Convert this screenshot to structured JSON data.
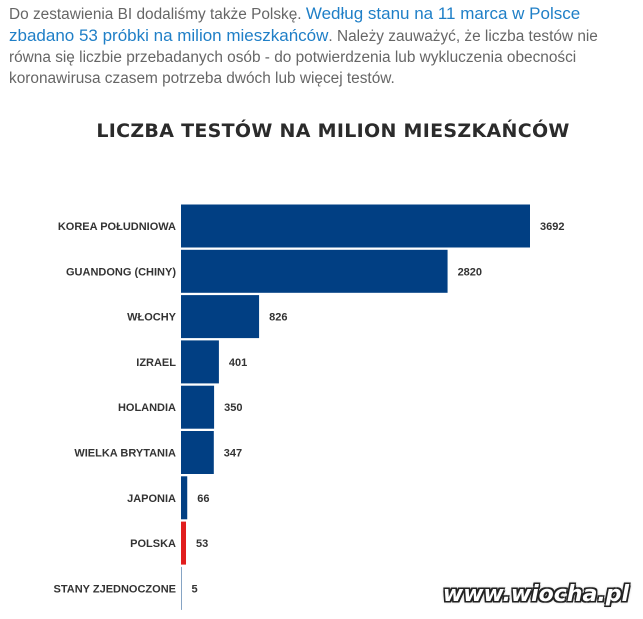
{
  "intro": {
    "text_before": "Do zestawienia BI dodaliśmy także Polskę. ",
    "link_text": "Według stanu na 11 marca w Polsce zbadano 53 próbki na milion mieszkańców",
    "text_after": ". Należy zauważyć, że liczba testów nie równa się liczbie przebadanych osób - do potwierdzenia lub wykluczenia obecności koronawirusa czasem potrzeba dwóch lub więcej testów."
  },
  "watermark": "www.wiocha.pl",
  "colors": {
    "bar": "#013f83",
    "highlight": "#e11d1d"
  },
  "chart_data": {
    "type": "bar",
    "orientation": "horizontal",
    "title": "LICZBA TESTÓW NA MILION MIESZKAŃCÓW",
    "categories": [
      "KOREA POŁUDNIOWA",
      "GUANDONG (CHINY)",
      "WŁOCHY",
      "IZRAEL",
      "HOLANDIA",
      "WIELKA BRYTANIA",
      "JAPONIA",
      "POLSKA",
      "STANY ZJEDNOCZONE"
    ],
    "values": [
      3692,
      2820,
      826,
      401,
      350,
      347,
      66,
      53,
      5
    ],
    "highlight_category": "POLSKA",
    "grid": false,
    "legend": false
  }
}
